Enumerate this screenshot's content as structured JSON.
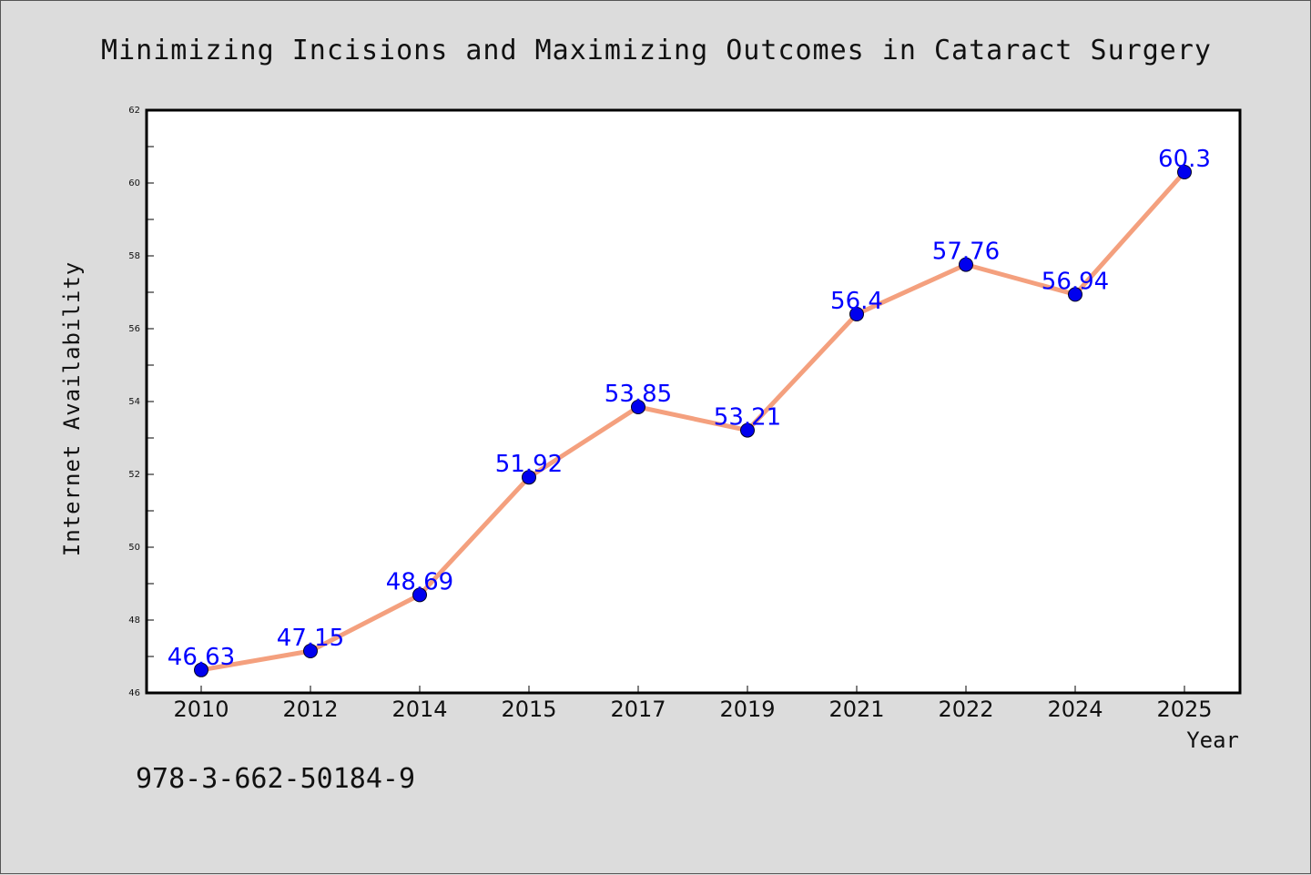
{
  "chart_data": {
    "type": "line",
    "title": "Minimizing Incisions and Maximizing Outcomes in Cataract Surgery",
    "xlabel": "Year",
    "ylabel": "Internet Availability",
    "categories": [
      "2010",
      "2012",
      "2014",
      "2015",
      "2017",
      "2019",
      "2021",
      "2022",
      "2024",
      "2025"
    ],
    "series": [
      {
        "values": [
          46.63,
          47.15,
          48.69,
          51.92,
          53.85,
          53.21,
          56.4,
          57.76,
          56.94,
          60.3
        ],
        "labels": [
          "46.63",
          "47.15",
          "48.69",
          "51.92",
          "53.85",
          "53.21",
          "56.4",
          "57.76",
          "56.94",
          "60.3"
        ]
      }
    ],
    "ylim": [
      46,
      62
    ],
    "yticks": [
      "46",
      "48",
      "50",
      "52",
      "54",
      "56",
      "58",
      "60",
      "62"
    ],
    "grid": false,
    "colors": {
      "line": "#f4a07e",
      "marker": "#0000ee",
      "label": "#0000ff",
      "background": "#dcdcdc",
      "plot": "#ffffff"
    }
  },
  "footer": {
    "code": "978-3-662-50184-9"
  }
}
